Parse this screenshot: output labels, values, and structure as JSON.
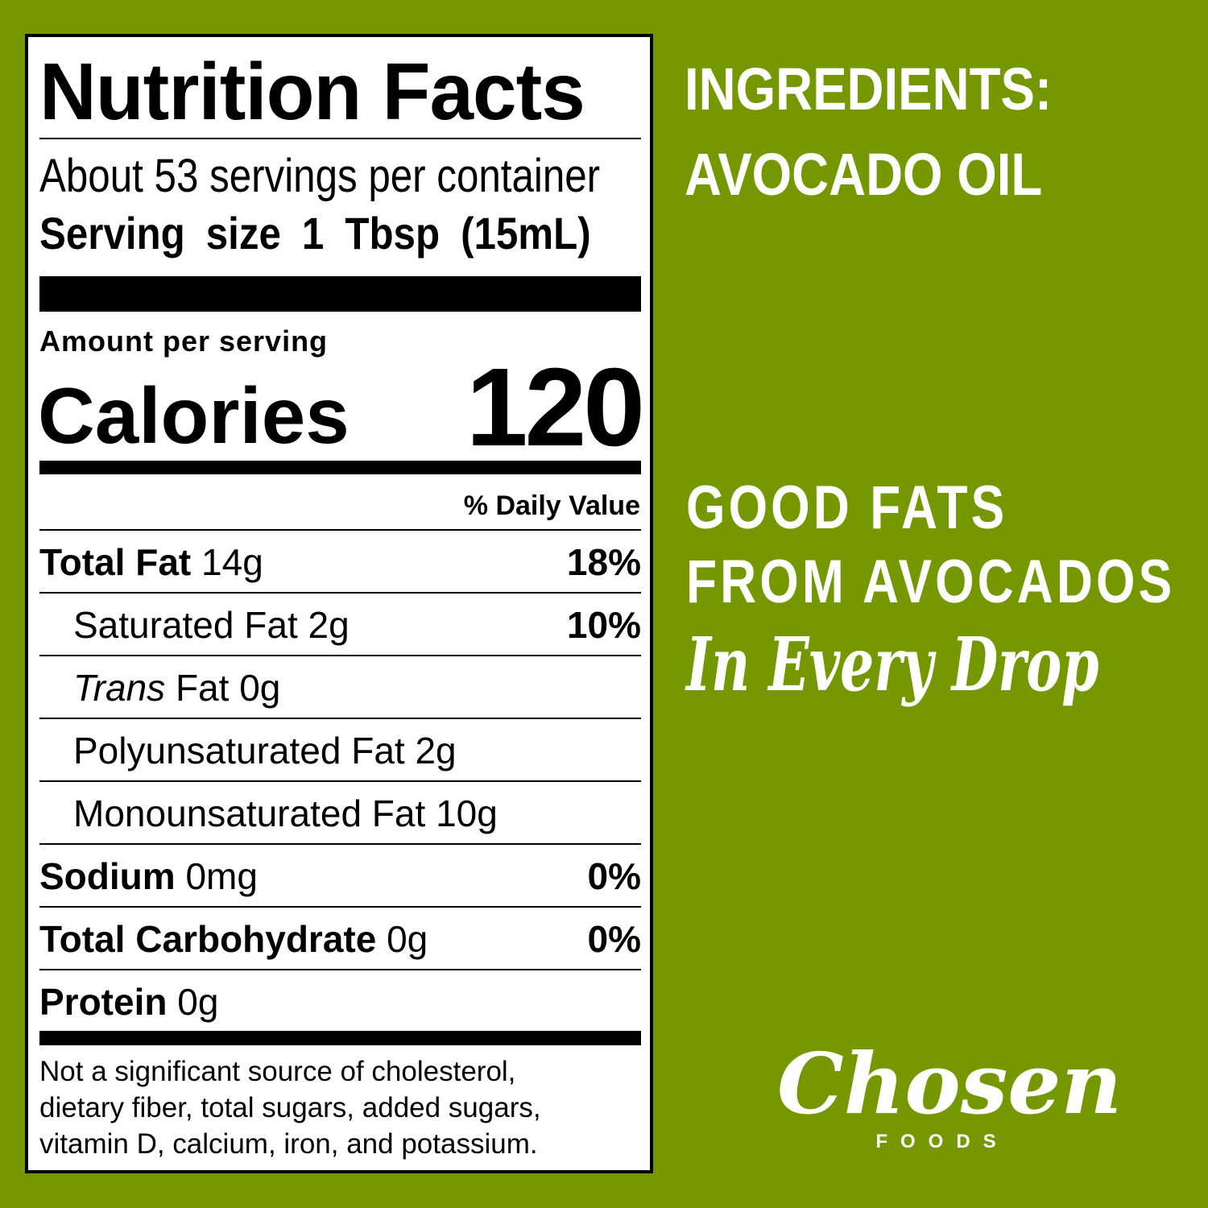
{
  "colors": {
    "background": "#759800",
    "label": "#ffffff",
    "text": "#000000"
  },
  "label": {
    "title": "Nutrition Facts",
    "servings": "About 53 servings per container",
    "serving_size_label": "Serving size",
    "serving_size_value": "1 Tbsp (15mL)",
    "amount_per_serving": "Amount per serving",
    "calories_label": "Calories",
    "calories_value": "120",
    "daily_value_header": "% Daily Value",
    "rows": [
      {
        "name": "Total Fat",
        "amount": "14g",
        "dv": "18%"
      },
      {
        "name": "Saturated Fat",
        "amount": "2g",
        "dv": "10%"
      },
      {
        "name": "Trans",
        "name_suffix": "Fat",
        "amount": "0g",
        "dv": ""
      },
      {
        "name": "Polyunsaturated Fat",
        "amount": "2g",
        "dv": ""
      },
      {
        "name": "Monounsaturated Fat",
        "amount": "10g",
        "dv": ""
      },
      {
        "name": "Sodium",
        "amount": "0mg",
        "dv": "0%"
      },
      {
        "name": "Total Carbohydrate",
        "amount": "0g",
        "dv": "0%"
      },
      {
        "name": "Protein",
        "amount": "0g",
        "dv": ""
      }
    ],
    "footnote": [
      "Not a significant source of cholesterol,",
      "dietary fiber, total sugars, added sugars,",
      "vitamin D, calcium, iron, and potassium."
    ]
  },
  "ingredients": {
    "heading": "INGREDIENTS:",
    "value": "AVOCADO OIL"
  },
  "tagline": {
    "line1": "GOOD FATS",
    "line2": "FROM AVOCADOS",
    "script": "In Every Drop"
  },
  "logo": {
    "brand": "Chosen",
    "sub": "FOODS"
  }
}
